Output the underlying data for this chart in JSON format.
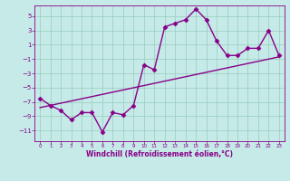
{
  "xlabel": "Windchill (Refroidissement éolien,°C)",
  "bg_color": "#c5eae8",
  "line_color": "#880088",
  "grid_color": "#99ccbb",
  "xlim": [
    -0.5,
    23.5
  ],
  "ylim": [
    -12.5,
    6.5
  ],
  "yticks": [
    -11,
    -9,
    -7,
    -5,
    -3,
    -1,
    1,
    3,
    5
  ],
  "xticks": [
    0,
    1,
    2,
    3,
    4,
    5,
    6,
    7,
    8,
    9,
    10,
    11,
    12,
    13,
    14,
    15,
    16,
    17,
    18,
    19,
    20,
    21,
    22,
    23
  ],
  "data_x": [
    0,
    1,
    2,
    3,
    4,
    5,
    6,
    7,
    8,
    9,
    10,
    11,
    12,
    13,
    14,
    15,
    16,
    17,
    18,
    19,
    20,
    21,
    22,
    23
  ],
  "data_y": [
    -6.5,
    -7.5,
    -8.2,
    -9.5,
    -8.5,
    -8.5,
    -11.2,
    -8.5,
    -8.8,
    -7.5,
    -1.8,
    -2.5,
    3.5,
    4.0,
    4.5,
    6.0,
    4.5,
    1.5,
    -0.5,
    -0.5,
    0.5,
    0.5,
    3.0,
    -0.5
  ],
  "trend_x": [
    0,
    23
  ],
  "trend_y": [
    -7.8,
    -0.7
  ],
  "marker": "D",
  "markersize": 2.5,
  "linewidth": 1.0
}
